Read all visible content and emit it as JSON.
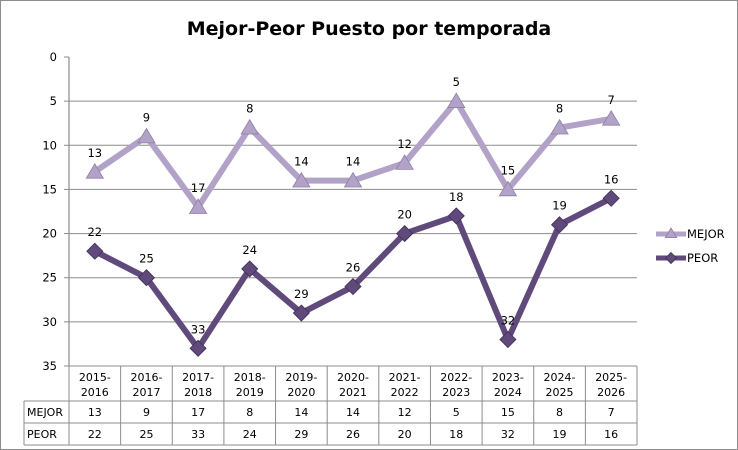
{
  "chart_data": {
    "type": "line",
    "title": "Mejor-Peor Puesto por temporada",
    "xlabel": "",
    "ylabel": "",
    "ylim": [
      0,
      35
    ],
    "y_inverted": true,
    "yticks": [
      0,
      5,
      10,
      15,
      20,
      25,
      30,
      35
    ],
    "grid": true,
    "legend_position": "right",
    "categories": [
      "2015-2016",
      "2016-2017",
      "2017-2018",
      "2018-2019",
      "2019-2020",
      "2020-2021",
      "2021-2022",
      "2022-2023",
      "2023-2024",
      "2024-2025",
      "2025-2026"
    ],
    "series": [
      {
        "name": "MEJOR",
        "marker": "triangle",
        "color": "#b3a2c7",
        "values": [
          13,
          9,
          17,
          8,
          14,
          14,
          12,
          5,
          15,
          8,
          7
        ]
      },
      {
        "name": "PEOR",
        "marker": "diamond",
        "color": "#604a7b",
        "values": [
          22,
          25,
          33,
          24,
          29,
          26,
          20,
          18,
          32,
          19,
          16
        ]
      }
    ],
    "data_table": true
  }
}
